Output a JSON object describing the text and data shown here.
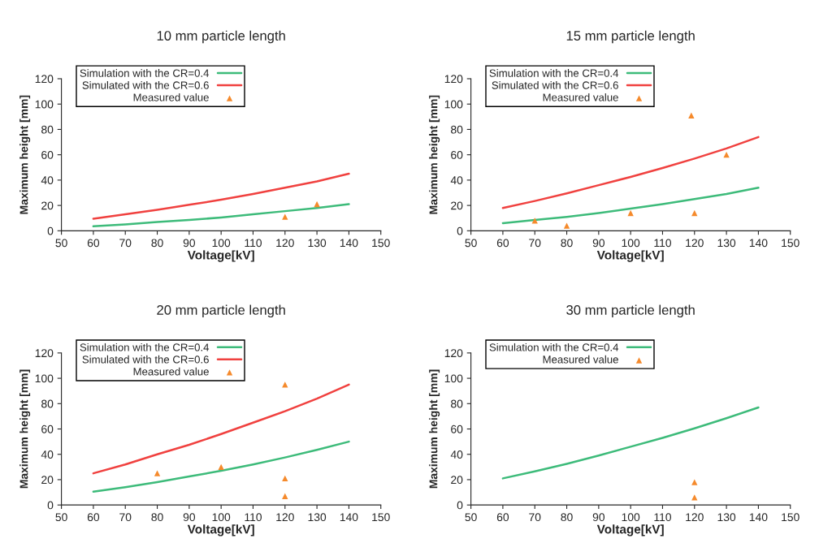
{
  "chart_data": [
    {
      "type": "line",
      "title": "10 mm particle length",
      "xlabel": "Voltage[kV]",
      "ylabel": "Maximum height [mm]",
      "xlim": [
        50,
        150
      ],
      "xticks": [
        50,
        60,
        70,
        80,
        90,
        100,
        110,
        120,
        130,
        140,
        150
      ],
      "ylim": [
        0,
        120
      ],
      "yticks": [
        0,
        20,
        40,
        60,
        80,
        100,
        120
      ],
      "grid": false,
      "legend": "top left",
      "series": [
        {
          "name": "Simulation with the CR=0.4",
          "color": "#3dbb7a",
          "marker": "none",
          "x": [
            60,
            70,
            80,
            90,
            100,
            110,
            120,
            130,
            140
          ],
          "values": [
            3.5,
            5,
            7,
            8.5,
            10.5,
            13,
            15.5,
            18,
            21
          ]
        },
        {
          "name": "Simulated with the CR=0.6",
          "color": "#f0413f",
          "marker": "none",
          "x": [
            60,
            70,
            80,
            90,
            100,
            110,
            120,
            130,
            140
          ],
          "values": [
            9.5,
            13,
            16.5,
            20.5,
            24.5,
            29,
            34,
            39,
            45
          ]
        },
        {
          "name": "Measured value",
          "type": "scatter",
          "color": "#f58a2c",
          "marker": "triangle",
          "x": [
            120,
            130
          ],
          "values": [
            11,
            21
          ]
        }
      ]
    },
    {
      "type": "line",
      "title": "15 mm particle length",
      "xlabel": "Voltage[kV]",
      "ylabel": "Maximum height [mm]",
      "xlim": [
        50,
        150
      ],
      "xticks": [
        50,
        60,
        70,
        80,
        90,
        100,
        110,
        120,
        130,
        140,
        150
      ],
      "ylim": [
        0,
        120
      ],
      "yticks": [
        0,
        20,
        40,
        60,
        80,
        100,
        120
      ],
      "grid": false,
      "legend": "top left",
      "series": [
        {
          "name": "Simulation with the CR=0.4",
          "color": "#3dbb7a",
          "marker": "none",
          "x": [
            60,
            70,
            80,
            90,
            100,
            110,
            120,
            130,
            140
          ],
          "values": [
            6,
            8.5,
            11,
            14,
            17.5,
            21,
            25,
            29,
            34
          ]
        },
        {
          "name": "Simulated with the CR=0.6",
          "color": "#f0413f",
          "marker": "none",
          "x": [
            60,
            70,
            80,
            90,
            100,
            110,
            120,
            130,
            140
          ],
          "values": [
            18,
            23.5,
            29.5,
            36,
            42.5,
            49.5,
            57,
            65,
            74
          ]
        },
        {
          "name": "Measured value",
          "type": "scatter",
          "color": "#f58a2c",
          "marker": "triangle",
          "x": [
            70,
            80,
            100,
            119,
            120,
            130
          ],
          "values": [
            8,
            4,
            14,
            91,
            14,
            60
          ]
        }
      ]
    },
    {
      "type": "line",
      "title": "20 mm particle length",
      "xlabel": "Voltage[kV]",
      "ylabel": "Maximum height [mm]",
      "xlim": [
        50,
        150
      ],
      "xticks": [
        50,
        60,
        70,
        80,
        90,
        100,
        110,
        120,
        130,
        140,
        150
      ],
      "ylim": [
        0,
        120
      ],
      "yticks": [
        0,
        20,
        40,
        60,
        80,
        100,
        120
      ],
      "grid": false,
      "legend": "top left",
      "series": [
        {
          "name": "Simulation with the CR=0.4",
          "color": "#3dbb7a",
          "marker": "none",
          "x": [
            60,
            70,
            80,
            90,
            100,
            110,
            120,
            130,
            140
          ],
          "values": [
            10.5,
            14,
            18,
            22.5,
            27,
            32,
            37.5,
            43.5,
            50
          ]
        },
        {
          "name": "Simulated with the CR=0.6",
          "color": "#f0413f",
          "marker": "none",
          "x": [
            60,
            70,
            80,
            90,
            100,
            110,
            120,
            130,
            140
          ],
          "values": [
            25,
            32,
            40,
            47.5,
            56,
            65,
            74,
            84,
            95
          ]
        },
        {
          "name": "Measured value",
          "type": "scatter",
          "color": "#f58a2c",
          "marker": "triangle",
          "x": [
            80,
            100,
            120,
            120,
            120
          ],
          "values": [
            25,
            30,
            95,
            21,
            7
          ]
        }
      ]
    },
    {
      "type": "line",
      "title": "30 mm particle length",
      "xlabel": "Voltage[kV]",
      "ylabel": "Maximum height [mm]",
      "xlim": [
        50,
        150
      ],
      "xticks": [
        50,
        60,
        70,
        80,
        90,
        100,
        110,
        120,
        130,
        140,
        150
      ],
      "ylim": [
        0,
        120
      ],
      "yticks": [
        0,
        20,
        40,
        60,
        80,
        100,
        120
      ],
      "grid": false,
      "legend": "top left",
      "series": [
        {
          "name": "Simulation with the CR=0.4",
          "color": "#3dbb7a",
          "marker": "none",
          "x": [
            60,
            70,
            80,
            90,
            100,
            110,
            120,
            130,
            140
          ],
          "values": [
            21,
            26.5,
            32.5,
            39,
            46,
            53,
            60.5,
            68.5,
            77
          ]
        },
        {
          "name": "Measured value",
          "type": "scatter",
          "color": "#f58a2c",
          "marker": "triangle",
          "x": [
            120,
            120
          ],
          "values": [
            18,
            6
          ]
        }
      ]
    }
  ]
}
